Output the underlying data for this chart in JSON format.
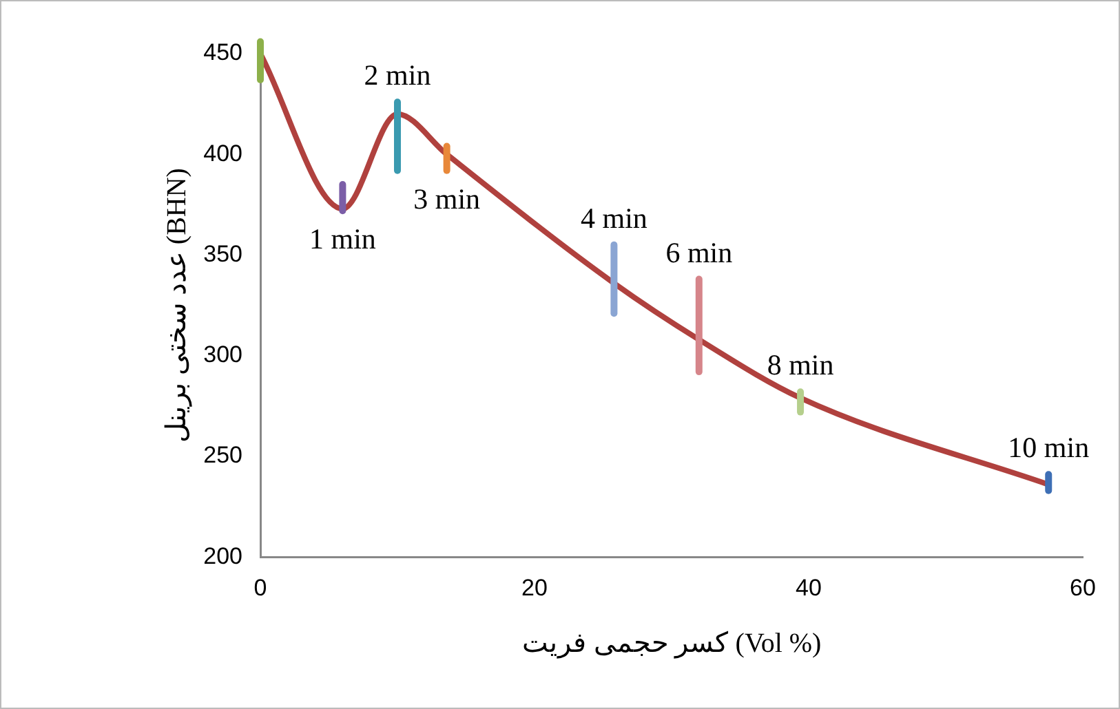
{
  "chart_data": {
    "type": "line",
    "xlabel": "کسر حجمی فریت (Vol %)",
    "ylabel": "عدد سختی برینل (BHN)",
    "x": [
      0,
      6,
      10,
      13.6,
      25.8,
      32,
      39.4,
      57.5
    ],
    "series": [
      {
        "color": "#b0413e",
        "values": [
          450,
          373,
          420,
          400,
          336,
          308,
          279,
          236
        ],
        "errors": [
          [
            437,
            456
          ],
          [
            372,
            385
          ],
          [
            392,
            426
          ],
          [
            392,
            404
          ],
          [
            321,
            355
          ],
          [
            292,
            338
          ],
          [
            272,
            282
          ],
          [
            233,
            241
          ]
        ],
        "colors": [
          "#8db04a",
          "#7b5ea7",
          "#3a9ab0",
          "#e8883a",
          "#8aa5d3",
          "#d6858a",
          "#b5cf8c",
          "#3e6fb5"
        ]
      }
    ],
    "xlim": [
      0,
      60
    ],
    "xticks": [
      0,
      20,
      40,
      60
    ],
    "ylim": [
      200,
      450
    ],
    "yticks": [
      200,
      250,
      300,
      350,
      400,
      450
    ],
    "grid": false,
    "legend": false,
    "marker": "none",
    "line_style": "solid",
    "annotations": [
      {
        "text": "1 min",
        "x": 6,
        "y": 373
      },
      {
        "text": "2 min",
        "x": 10,
        "y": 420
      },
      {
        "text": "3 min",
        "x": 13.6,
        "y": 400
      },
      {
        "text": "4 min",
        "x": 25.8,
        "y": 336
      },
      {
        "text": "6 min",
        "x": 32,
        "y": 308
      },
      {
        "text": "8 min",
        "x": 39.4,
        "y": 279
      },
      {
        "text": "10 min",
        "x": 57.5,
        "y": 236
      }
    ]
  }
}
